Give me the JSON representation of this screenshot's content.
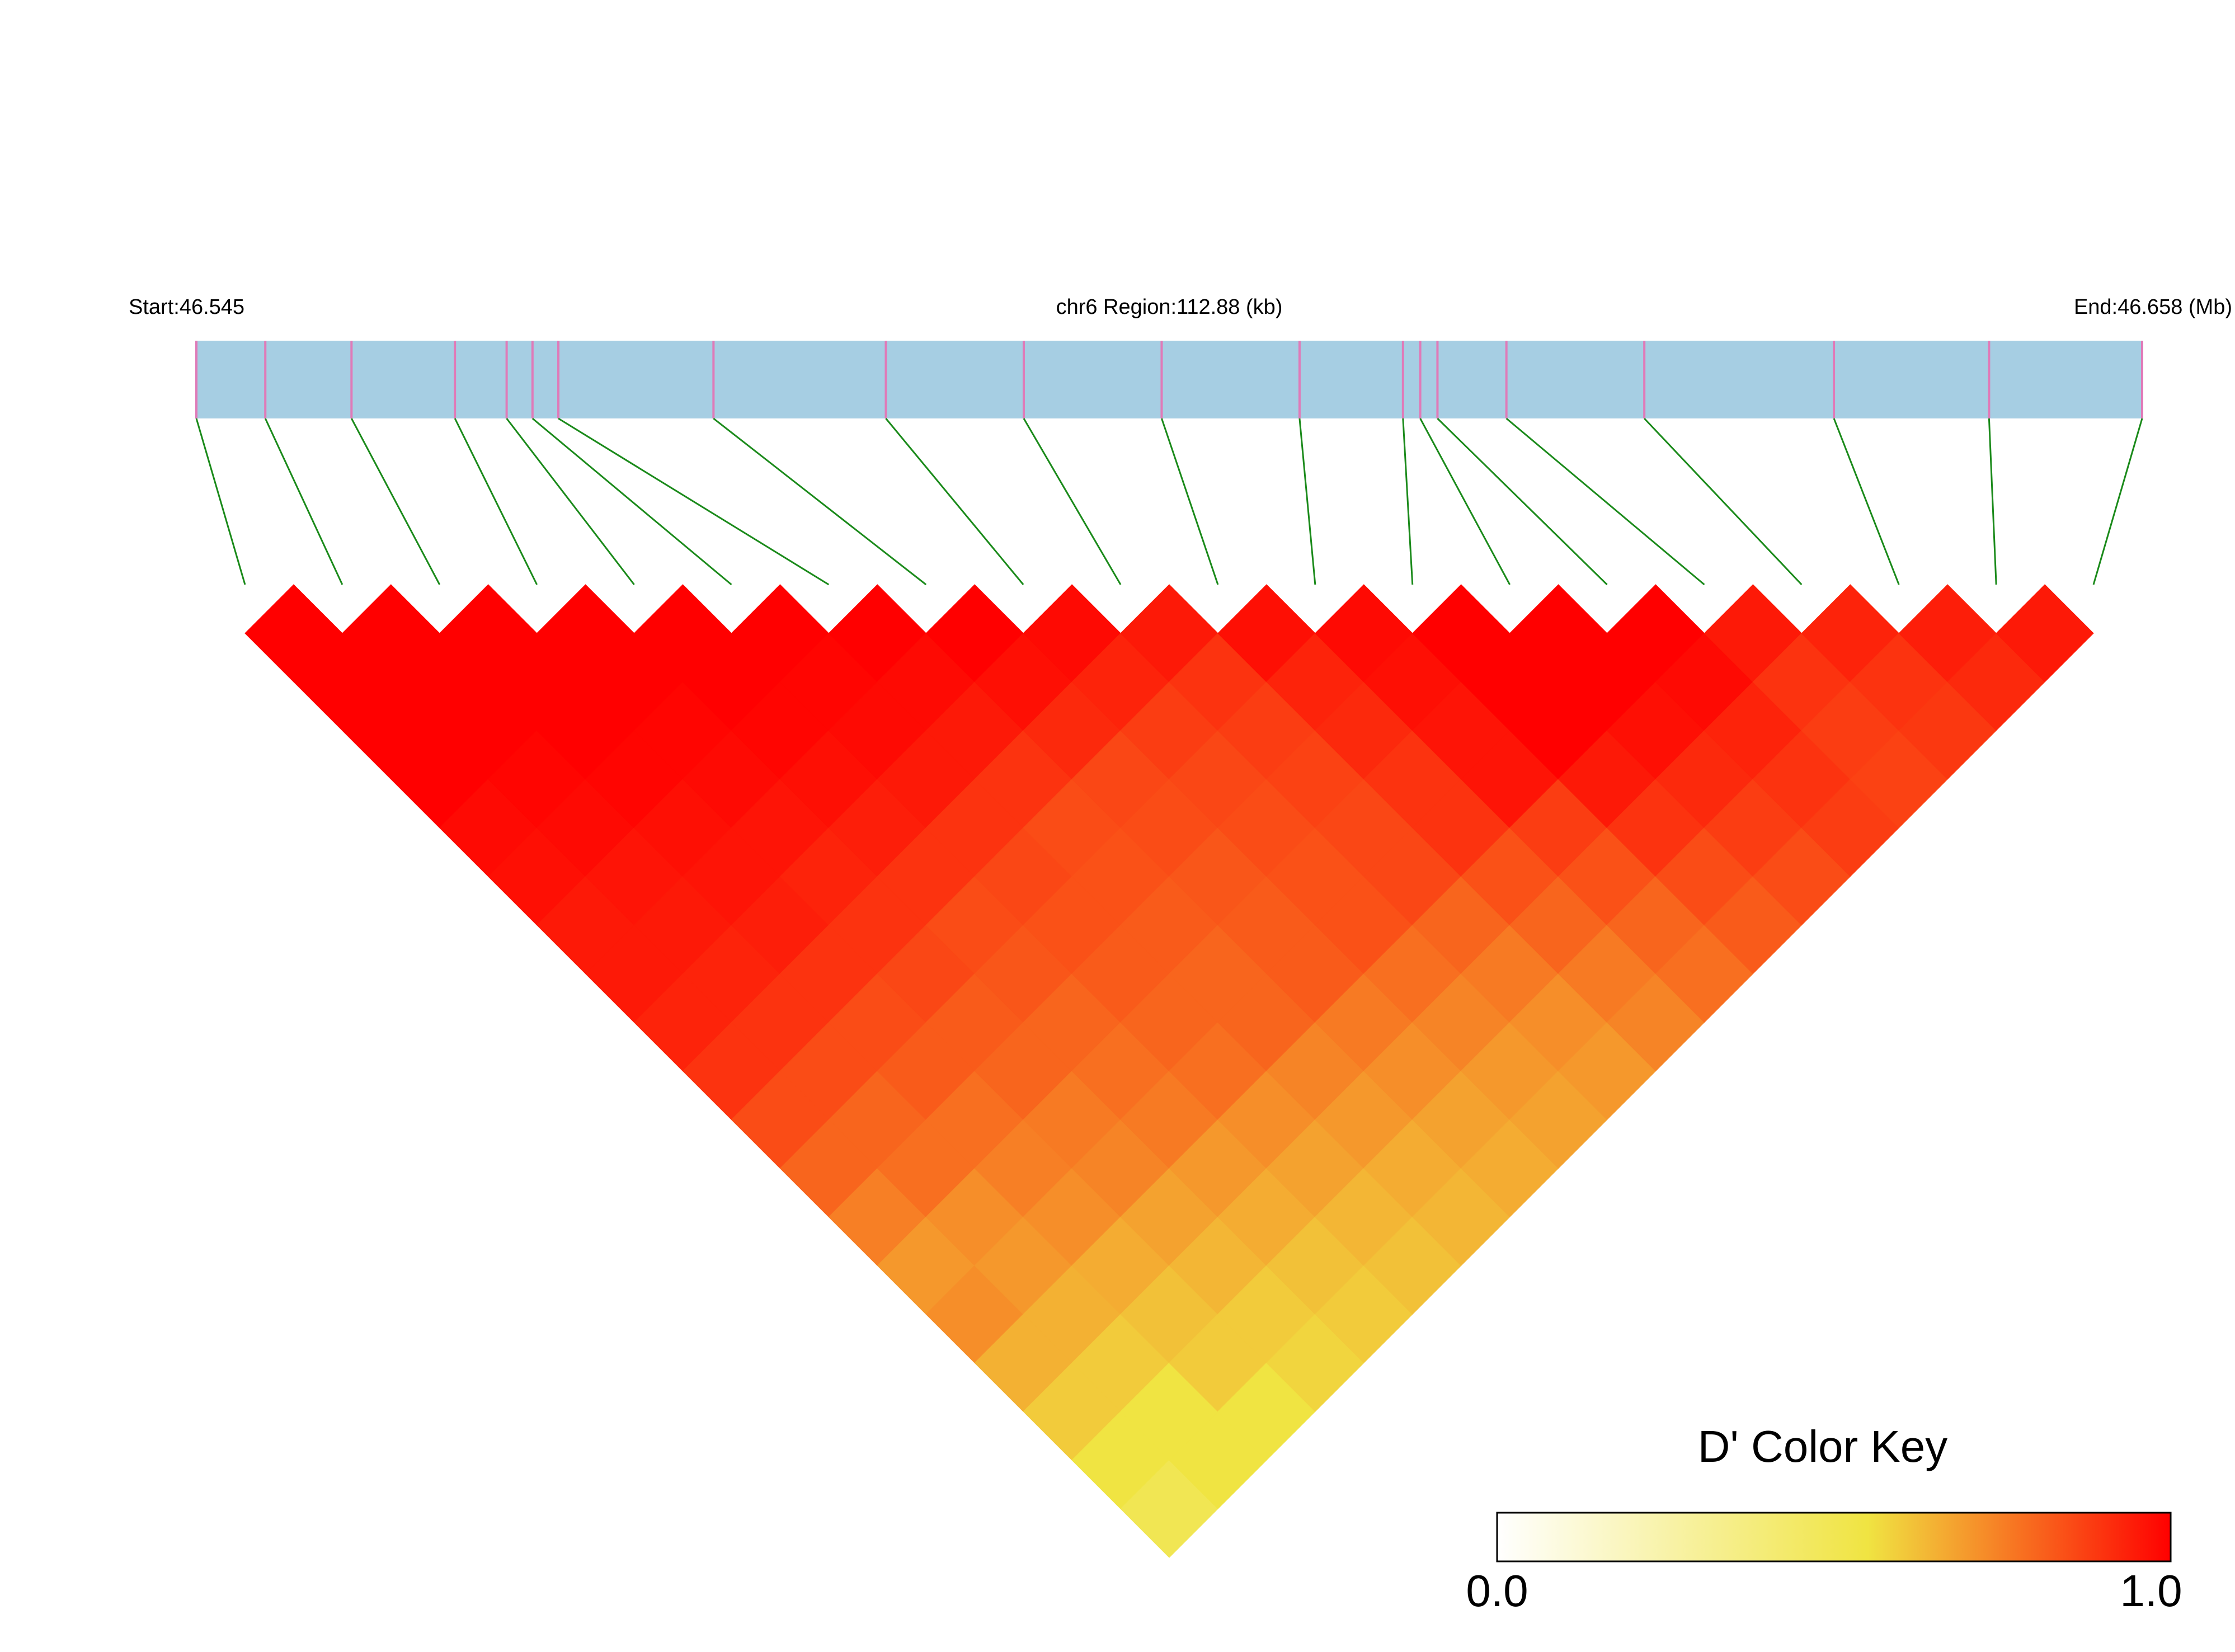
{
  "chart_data": {
    "type": "ldheatmap",
    "start_label": "Start:46.545",
    "region_label": "chr6 Region:112.88 (kb)",
    "end_label": "End:46.658 (Mb)",
    "key_title": "D' Color Key",
    "key_lim": [
      0,
      1
    ],
    "key_ticks": [
      {
        "value": 0,
        "label": "0.0"
      },
      {
        "value": 1,
        "label": "1.0"
      }
    ],
    "color_stops": [
      [
        0,
        "#ffffff"
      ],
      [
        0.55,
        "#f0e442"
      ],
      [
        1,
        "#ff0000"
      ]
    ],
    "bar_color": "#a6cee3",
    "snp_line_color": "#e07ab8",
    "connector_color": "#1a8a1a",
    "xlim": [
      0,
      112.88
    ],
    "positions": [
      0,
      4,
      9,
      15,
      18,
      19.5,
      21,
      30,
      40,
      48,
      56,
      64,
      70,
      71,
      72,
      76,
      84,
      95,
      104,
      112.88
    ],
    "dprime": [
      [
        1,
        1,
        1,
        1,
        0.98,
        0.97,
        0.95,
        0.95,
        0.93,
        0.9,
        0.85,
        0.8,
        0.75,
        0.7,
        0.72,
        0.65,
        0.6,
        0.55,
        0.5
      ],
      [
        1,
        1,
        1,
        0.99,
        0.98,
        0.96,
        0.95,
        0.93,
        0.9,
        0.85,
        0.8,
        0.78,
        0.72,
        0.7,
        0.65,
        0.6,
        0.55,
        0.55
      ],
      [
        1,
        1,
        1,
        0.99,
        0.97,
        0.96,
        0.94,
        0.9,
        0.85,
        0.82,
        0.78,
        0.75,
        0.72,
        0.66,
        0.62,
        0.6,
        0.55
      ],
      [
        1,
        1,
        0.99,
        0.98,
        0.96,
        0.93,
        0.9,
        0.86,
        0.82,
        0.8,
        0.76,
        0.74,
        0.68,
        0.64,
        0.6,
        0.58
      ],
      [
        1,
        1,
        0.99,
        0.97,
        0.94,
        0.9,
        0.85,
        0.83,
        0.8,
        0.78,
        0.76,
        0.7,
        0.66,
        0.62,
        0.6
      ],
      [
        1,
        0.99,
        0.98,
        0.95,
        0.9,
        0.86,
        0.84,
        0.82,
        0.8,
        0.78,
        0.72,
        0.68,
        0.64,
        0.62
      ],
      [
        1,
        0.98,
        0.95,
        0.9,
        0.85,
        0.84,
        0.82,
        0.8,
        0.8,
        0.74,
        0.7,
        0.66,
        0.64
      ],
      [
        1,
        0.97,
        0.92,
        0.86,
        0.85,
        0.83,
        0.82,
        0.82,
        0.76,
        0.72,
        0.68,
        0.66
      ],
      [
        0.98,
        0.93,
        0.88,
        0.86,
        0.85,
        0.84,
        0.84,
        0.78,
        0.74,
        0.7,
        0.68
      ],
      [
        0.95,
        0.9,
        0.88,
        0.87,
        0.86,
        0.86,
        0.8,
        0.76,
        0.72,
        0.7
      ],
      [
        0.97,
        0.93,
        0.92,
        0.9,
        0.9,
        0.84,
        0.8,
        0.76,
        0.74
      ],
      [
        0.98,
        0.97,
        0.96,
        0.96,
        0.88,
        0.84,
        0.8,
        0.78
      ],
      [
        1,
        1,
        1,
        0.95,
        0.9,
        0.85,
        0.82
      ],
      [
        1,
        1,
        0.97,
        0.92,
        0.88,
        0.85
      ],
      [
        1,
        0.98,
        0.93,
        0.9,
        0.88
      ],
      [
        0.95,
        0.9,
        0.88,
        0.87
      ],
      [
        0.93,
        0.9,
        0.89
      ],
      [
        0.94,
        0.92
      ],
      [
        0.95
      ]
    ]
  }
}
